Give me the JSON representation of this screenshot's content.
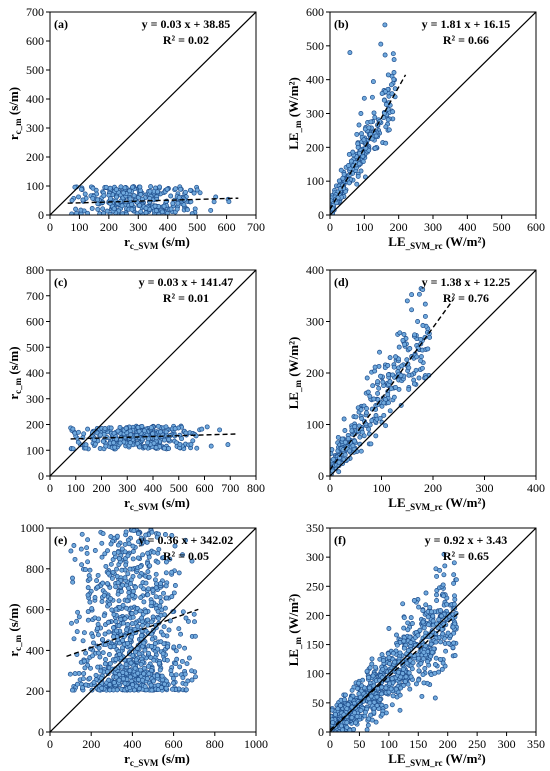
{
  "chart_data": [
    {
      "type": "scatter",
      "panel_label": "(a)",
      "equation": "y = 0.03 x + 38.85",
      "r2": "R² = 0.02",
      "fit": {
        "slope": 0.03,
        "intercept": 38.85,
        "x_range": [
          60,
          640
        ]
      },
      "one_to_one": true,
      "xlabel": {
        "main": "r",
        "sub": "c_SVM",
        "unit": " (s/m)"
      },
      "ylabel": {
        "main": "r",
        "sub": "c_m",
        "unit": " (s/m)"
      },
      "xlim": [
        0,
        700
      ],
      "ylim": [
        0,
        700
      ],
      "xticks": [
        0,
        100,
        200,
        300,
        400,
        500,
        600,
        700
      ],
      "yticks": [
        0,
        100,
        200,
        300,
        400,
        500,
        600,
        700
      ],
      "cloud": {
        "n": 320,
        "x_range": [
          70,
          640
        ],
        "y_range": [
          2,
          98
        ],
        "x_center": 300,
        "x_spread": 110
      },
      "points": []
    },
    {
      "type": "scatter",
      "panel_label": "(b)",
      "equation": "y = 1.81 x + 16.15",
      "r2": "R² = 0.66",
      "fit": {
        "slope": 1.81,
        "intercept": 16.15,
        "x_range": [
          0,
          220
        ]
      },
      "one_to_one": true,
      "xlabel": {
        "main": "LE",
        "sub": "_SVM_rc",
        "unit": " (W/m²)"
      },
      "ylabel": {
        "main": "LE",
        "sub": "_m",
        "unit": " (W/m²)"
      },
      "xlim": [
        0,
        600
      ],
      "ylim": [
        0,
        600
      ],
      "xticks": [
        0,
        100,
        200,
        300,
        400,
        500,
        600
      ],
      "yticks": [
        0,
        100,
        200,
        300,
        400,
        500,
        600
      ],
      "cloud": {
        "n": 300,
        "slope": 1.81,
        "intercept": 16.15,
        "x_range": [
          2,
          190
        ],
        "resid": 28,
        "skew": 1.2
      },
      "points": [
        [
          58,
          480
        ],
        [
          148,
          505
        ],
        [
          160,
          562
        ],
        [
          100,
          345
        ],
        [
          90,
          300
        ]
      ]
    },
    {
      "type": "scatter",
      "panel_label": "(c)",
      "equation": "y = 0.03 x + 141.47",
      "r2": "R² = 0.01",
      "fit": {
        "slope": 0.03,
        "intercept": 141.47,
        "x_range": [
          80,
          720
        ]
      },
      "one_to_one": true,
      "xlabel": {
        "main": "r",
        "sub": "c_SVM",
        "unit": " (s/m)"
      },
      "ylabel": {
        "main": "r",
        "sub": "c_m",
        "unit": " (s/m)"
      },
      "xlim": [
        0,
        800
      ],
      "ylim": [
        0,
        800
      ],
      "xticks": [
        0,
        100,
        200,
        300,
        400,
        500,
        600,
        700,
        800
      ],
      "yticks": [
        0,
        100,
        200,
        300,
        400,
        500,
        600,
        700,
        800
      ],
      "cloud": {
        "n": 320,
        "x_range": [
          80,
          720
        ],
        "y_range": [
          105,
          195
        ],
        "x_center": 330,
        "x_spread": 120
      },
      "points": []
    },
    {
      "type": "scatter",
      "panel_label": "(d)",
      "equation": "y = 1.38 x + 12.25",
      "r2": "R² = 0.76",
      "fit": {
        "slope": 1.38,
        "intercept": 12.25,
        "x_range": [
          0,
          240
        ]
      },
      "one_to_one": true,
      "xlabel": {
        "main": "LE",
        "sub": "_SVM_rc",
        "unit": " (W/m²)"
      },
      "ylabel": {
        "main": "LE",
        "sub": "_m",
        "unit": " (W/m²)"
      },
      "xlim": [
        0,
        400
      ],
      "ylim": [
        0,
        400
      ],
      "xticks": [
        0,
        100,
        200,
        300,
        400
      ],
      "yticks": [
        0,
        100,
        200,
        300,
        400
      ],
      "cloud": {
        "n": 300,
        "slope": 1.38,
        "intercept": 12.25,
        "x_range": [
          2,
          195
        ],
        "resid": 32,
        "skew": 0.6
      },
      "points": [
        [
          180,
          362
        ],
        [
          150,
          340
        ],
        [
          170,
          300
        ]
      ]
    },
    {
      "type": "scatter",
      "panel_label": "(e)",
      "equation": "y = 0.36 x + 342.02",
      "r2": "R² = 0.05",
      "fit": {
        "slope": 0.36,
        "intercept": 342.02,
        "x_range": [
          80,
          720
        ]
      },
      "one_to_one": true,
      "xlabel": {
        "main": "r",
        "sub": "c_SVM",
        "unit": " (s/m)"
      },
      "ylabel": {
        "main": "r",
        "sub": "c_m",
        "unit": " (s/m)"
      },
      "xlim": [
        0,
        1000
      ],
      "ylim": [
        0,
        1000
      ],
      "xticks": [
        0,
        200,
        400,
        600,
        800,
        1000
      ],
      "yticks": [
        0,
        200,
        400,
        600,
        800,
        1000
      ],
      "cloud": {
        "n": 900,
        "x_range": [
          90,
          710
        ],
        "y_range": [
          205,
          995
        ],
        "x_center": 390,
        "x_spread": 130,
        "y_bias": 1.8
      },
      "points": []
    },
    {
      "type": "scatter",
      "panel_label": "(f)",
      "equation": "y = 0.92 x + 3.43",
      "r2": "R² = 0.65",
      "fit": {
        "slope": 0.92,
        "intercept": 3.43,
        "x_range": [
          0,
          220
        ]
      },
      "one_to_one": true,
      "xlabel": {
        "main": "LE",
        "sub": "_SVM_rc",
        "unit": " (W/m²)"
      },
      "ylabel": {
        "main": "LE",
        "sub": "_m",
        "unit": " (W/m²)"
      },
      "xlim": [
        0,
        350
      ],
      "ylim": [
        0,
        350
      ],
      "xticks": [
        0,
        50,
        100,
        150,
        200,
        250,
        300,
        350
      ],
      "yticks": [
        0,
        50,
        100,
        150,
        200,
        250,
        300,
        350
      ],
      "cloud": {
        "n": 900,
        "slope": 0.92,
        "intercept": 3.43,
        "x_range": [
          1,
          215
        ],
        "resid": 32,
        "skew": 0.3
      },
      "points": [
        [
          180,
          280
        ],
        [
          195,
          285
        ],
        [
          210,
          255
        ]
      ]
    }
  ],
  "style": {
    "marker_fill": "#6fa8dc",
    "marker_stroke": "#1f4e8c",
    "line_color": "#000000"
  }
}
